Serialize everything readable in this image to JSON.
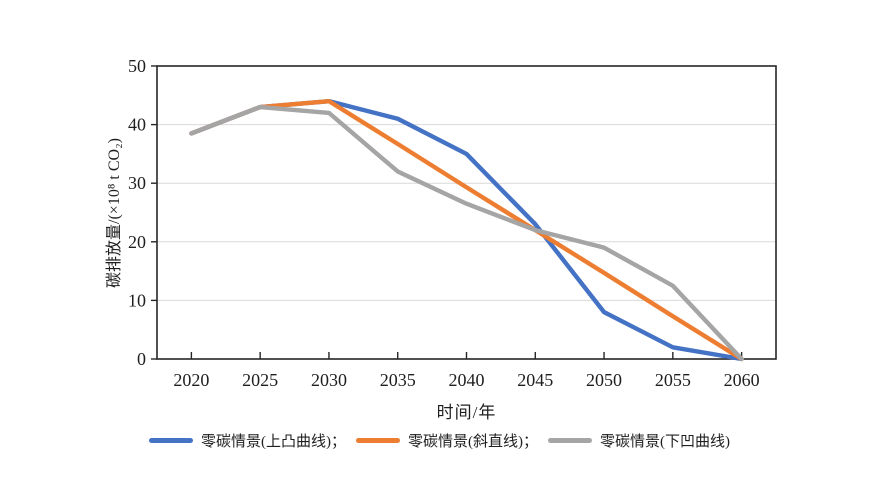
{
  "chart_data": {
    "type": "line",
    "title": "",
    "xlabel": "时间/年",
    "ylabel": "碳排放量/(×10⁸ t CO₂)",
    "x": [
      2020,
      2025,
      2030,
      2035,
      2040,
      2045,
      2050,
      2055,
      2060
    ],
    "xlim": [
      2017.5,
      2062.5
    ],
    "ylim": [
      0,
      50
    ],
    "yticks": [
      0,
      10,
      20,
      30,
      40,
      50
    ],
    "grid": "horizontal-light-gridlines",
    "legend_position": "bottom",
    "colors": {
      "axis": "#262626",
      "grid": "#d9d9d9",
      "background": "#ffffff",
      "blue": "#4472C4",
      "orange": "#ED7D31",
      "gray": "#A5A5A5"
    },
    "series": [
      {
        "name": "零碳情景(上凸曲线)；",
        "color": "#4472C4",
        "values": [
          38.5,
          43,
          44,
          41,
          35,
          23,
          8,
          2,
          0
        ]
      },
      {
        "name": "零碳情景(斜直线)；",
        "color": "#ED7D31",
        "values": [
          38.5,
          43,
          44,
          36.7,
          29.3,
          22,
          14.7,
          7.3,
          0
        ]
      },
      {
        "name": "零碳情景(下凹曲线)",
        "color": "#A5A5A5",
        "values": [
          38.5,
          43,
          42,
          32,
          26.5,
          22,
          19,
          12.5,
          0
        ]
      }
    ]
  }
}
